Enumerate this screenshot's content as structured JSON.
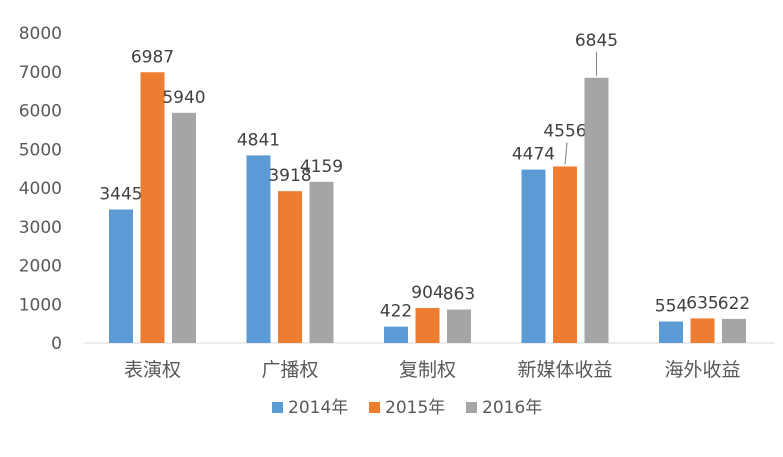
{
  "chart_data": {
    "type": "bar",
    "categories": [
      "表演权",
      "广播权",
      "复制权",
      "新媒体收益",
      "海外收益"
    ],
    "series": [
      {
        "name": "2014年",
        "color": "#5b9bd5",
        "values": [
          3445,
          4841,
          422,
          4474,
          554
        ]
      },
      {
        "name": "2015年",
        "color": "#ed7d31",
        "values": [
          6987,
          3918,
          904,
          4556,
          635
        ]
      },
      {
        "name": "2016年",
        "color": "#a5a5a5",
        "values": [
          5940,
          4159,
          863,
          6845,
          622
        ]
      }
    ],
    "ylim": [
      0,
      8000
    ],
    "yticks": [
      0,
      1000,
      2000,
      3000,
      4000,
      5000,
      6000,
      7000,
      8000
    ],
    "grid": false,
    "legend_position": "bottom",
    "data_labels": true
  }
}
